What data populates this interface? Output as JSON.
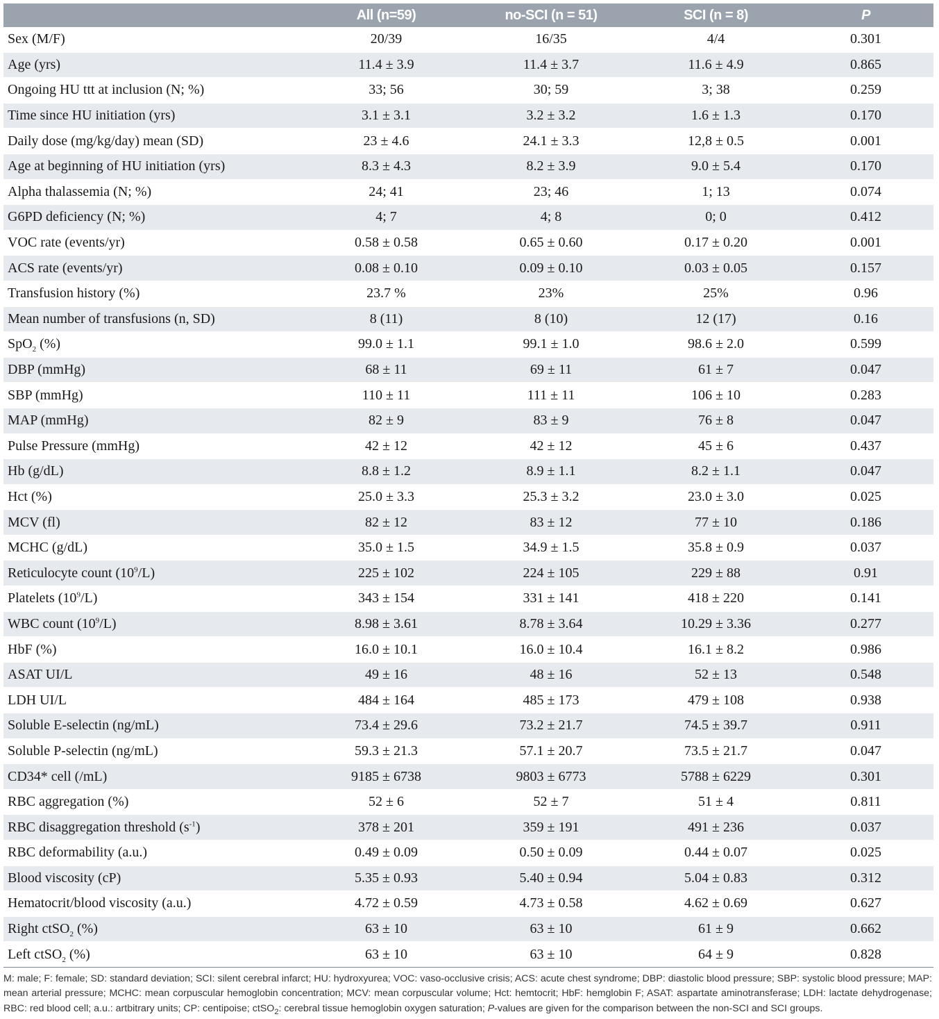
{
  "table": {
    "headers": [
      "",
      "All (n=59)",
      "no-SCI (n = 51)",
      "SCI (n = 8)",
      "P"
    ],
    "rows": [
      {
        "label": "Sex (M/F)",
        "all": "20/39",
        "nosci": "16/35",
        "sci": "4/4",
        "p": "0.301"
      },
      {
        "label": "Age (yrs)",
        "all": "11.4 ± 3.9",
        "nosci": "11.4 ± 3.7",
        "sci": "11.6 ± 4.9",
        "p": "0.865"
      },
      {
        "label": "Ongoing HU ttt at inclusion (N; %)",
        "all": "33; 56",
        "nosci": "30; 59",
        "sci": "3; 38",
        "p": "0.259"
      },
      {
        "label": "Time since HU initiation (yrs)",
        "all": "3.1 ± 3.1",
        "nosci": "3.2 ± 3.2",
        "sci": "1.6 ± 1.3",
        "p": "0.170"
      },
      {
        "label": "Daily dose (mg/kg/day) mean (SD)",
        "all": "23 ± 4.6",
        "nosci": "24.1 ± 3.3",
        "sci": "12,8 ± 0.5",
        "p": "0.001"
      },
      {
        "label": "Age at beginning of HU initiation (yrs)",
        "all": "8.3 ± 4.3",
        "nosci": "8.2 ± 3.9",
        "sci": "9.0 ± 5.4",
        "p": "0.170"
      },
      {
        "label": "Alpha thalassemia (N; %)",
        "all": "24; 41",
        "nosci": "23; 46",
        "sci": "1; 13",
        "p": "0.074"
      },
      {
        "label": "G6PD deficiency (N; %)",
        "all": "4; 7",
        "nosci": "4; 8",
        "sci": "0; 0",
        "p": "0.412"
      },
      {
        "label": "VOC rate (events/yr)",
        "all": "0.58 ± 0.58",
        "nosci": "0.65 ± 0.60",
        "sci": "0.17 ± 0.20",
        "p": "0.001"
      },
      {
        "label": "ACS rate (events/yr)",
        "all": "0.08 ± 0.10",
        "nosci": "0.09 ± 0.10",
        "sci": "0.03 ± 0.05",
        "p": "0.157"
      },
      {
        "label": "Transfusion history (%)",
        "all": "23.7 %",
        "nosci": "23%",
        "sci": "25%",
        "p": "0.96"
      },
      {
        "label": "Mean number of transfusions (n, SD)",
        "all": "8 (11)",
        "nosci": "8 (10)",
        "sci": "12 (17)",
        "p": "0.16"
      },
      {
        "label_pre": "SpO",
        "label_sub": "2",
        "label_post": " (%)",
        "all": "99.0 ± 1.1",
        "nosci": "99.1 ± 1.0",
        "sci": "98.6 ± 2.0",
        "p": "0.599"
      },
      {
        "label": "DBP (mmHg)",
        "all": "68 ± 11",
        "nosci": "69 ± 11",
        "sci": "61 ± 7",
        "p": "0.047"
      },
      {
        "label": "SBP (mmHg)",
        "all": "110 ± 11",
        "nosci": "111 ± 11",
        "sci": "106 ± 10",
        "p": "0.283"
      },
      {
        "label": "MAP (mmHg)",
        "all": "82 ± 9",
        "nosci": "83 ± 9",
        "sci": "76 ± 8",
        "p": "0.047"
      },
      {
        "label": "Pulse Pressure (mmHg)",
        "all": "42 ± 12",
        "nosci": "42 ± 12",
        "sci": "45 ± 6",
        "p": "0.437"
      },
      {
        "label": "Hb (g/dL)",
        "all": "8.8 ± 1.2",
        "nosci": "8.9 ± 1.1",
        "sci": "8.2 ± 1.1",
        "p": "0.047"
      },
      {
        "label": "Hct (%)",
        "all": "25.0 ± 3.3",
        "nosci": "25.3 ± 3.2",
        "sci": "23.0 ± 3.0",
        "p": "0.025"
      },
      {
        "label": "MCV (fl)",
        "all": "82 ± 12",
        "nosci": "83 ± 12",
        "sci": "77 ± 10",
        "p": "0.186"
      },
      {
        "label": "MCHC (g/dL)",
        "all": "35.0 ± 1.5",
        "nosci": "34.9 ± 1.5",
        "sci": "35.8 ± 0.9",
        "p": "0.037"
      },
      {
        "label_pre": "Reticulocyte count (10",
        "label_sup": "9",
        "label_post": "/L)",
        "all": "225 ± 102",
        "nosci": "224 ± 105",
        "sci": "229 ± 88",
        "p": "0.91"
      },
      {
        "label_pre": "Platelets (10",
        "label_sup": "9",
        "label_post": "/L)",
        "all": "343 ± 154",
        "nosci": "331 ± 141",
        "sci": "418 ± 220",
        "p": "0.141"
      },
      {
        "label_pre": "WBC count (10",
        "label_sup": "9",
        "label_post": "/L)",
        "all": "8.98 ± 3.61",
        "nosci": "8.78 ± 3.64",
        "sci": "10.29 ± 3.36",
        "p": "0.277"
      },
      {
        "label": "HbF (%)",
        "all": "16.0 ± 10.1",
        "nosci": "16.0 ± 10.4",
        "sci": "16.1 ± 8.2",
        "p": "0.986"
      },
      {
        "label": "ASAT UI/L",
        "all": "49 ± 16",
        "nosci": "48 ± 16",
        "sci": "52 ± 13",
        "p": "0.548"
      },
      {
        "label": "LDH UI/L",
        "all": "484 ± 164",
        "nosci": "485 ± 173",
        "sci": "479 ± 108",
        "p": "0.938"
      },
      {
        "label": "Soluble E-selectin (ng/mL)",
        "all": "73.4 ± 29.6",
        "nosci": "73.2 ± 21.7",
        "sci": "74.5 ± 39.7",
        "p": "0.911"
      },
      {
        "label": "Soluble P-selectin (ng/mL)",
        "all": "59.3 ± 21.3",
        "nosci": "57.1 ± 20.7",
        "sci": "73.5 ± 21.7",
        "p": "0.047"
      },
      {
        "label": "CD34* cell (/mL)",
        "all": "9185 ± 6738",
        "nosci": "9803 ± 6773",
        "sci": "5788 ± 6229",
        "p": "0.301"
      },
      {
        "label": "RBC aggregation (%)",
        "all": "52 ± 6",
        "nosci": "52 ± 7",
        "sci": "51 ± 4",
        "p": "0.811"
      },
      {
        "label_pre": "RBC disaggregation threshold (s",
        "label_sup": "-1",
        "label_post": ")",
        "all": "378 ± 201",
        "nosci": "359 ± 191",
        "sci": "491 ± 236",
        "p": "0.037"
      },
      {
        "label": "RBC deformability (a.u.)",
        "all": "0.49 ± 0.09",
        "nosci": "0.50 ± 0.09",
        "sci": "0.44 ± 0.07",
        "p": "0.025"
      },
      {
        "label": "Blood viscosity (cP)",
        "all": "5.35 ± 0.93",
        "nosci": "5.40 ± 0.94",
        "sci": "5.04 ± 0.83",
        "p": "0.312"
      },
      {
        "label": "Hematocrit/blood viscosity (a.u.)",
        "all": "4.72 ± 0.59",
        "nosci": "4.73 ± 0.58",
        "sci": "4.62 ± 0.69",
        "p": "0.627"
      },
      {
        "label_pre": "Right ctSO",
        "label_sub": "2",
        "label_post": " (%)",
        "all": "63 ± 10",
        "nosci": "63 ± 10",
        "sci": "61 ± 9",
        "p": "0.662"
      },
      {
        "label_pre": "Left ctSO",
        "label_sub": "2",
        "label_post": " (%)",
        "all": "63 ± 10",
        "nosci": "63 ± 10",
        "sci": "64 ± 9",
        "p": "0.828"
      }
    ]
  },
  "footnote": {
    "part1": "M: male; F: female; SD: standard deviation; SCI: silent cerebral infarct; HU: hydroxyurea; VOC: vaso-occlusive crisis; ACS: acute chest syndrome; DBP: diastolic blood pressure; SBP: systolic blood pressure; MAP: mean arterial pressure; MCHC: mean corpuscular hemoglobin concentration; MCV: mean corpuscular volume; Hct: hemtocrit; HbF: hemglobin F; ASAT: aspartate aminotransferase; LDH: lactate dehydrogenase; RBC: red blood cell; a.u.: artbitrary units; CP: centipoise; ctSO",
    "sub": "2",
    "part2": ": cerebral tissue hemoglobin oxygen saturation;",
    "p_italic": "P",
    "part3": "-values are given for the comparison between the non-SCI and SCI groups."
  },
  "colors": {
    "header_bg": "#9aa3ae",
    "stripe_bg": "#e6e9ee",
    "rule": "#7d8794"
  }
}
